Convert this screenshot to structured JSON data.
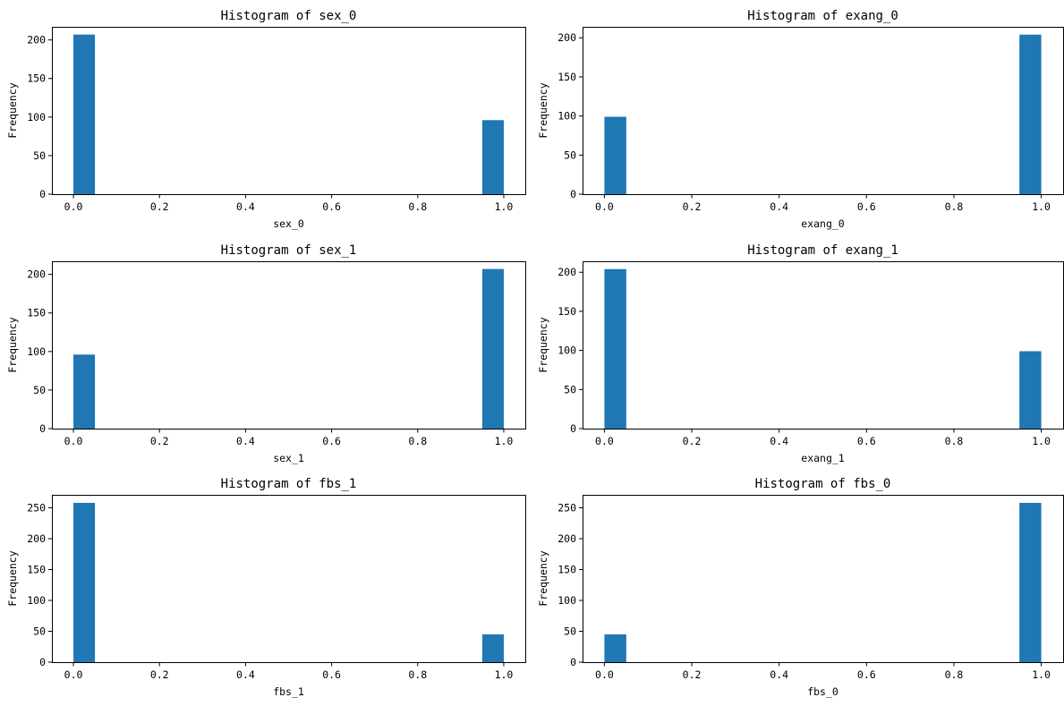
{
  "colors": {
    "bar": "#1f77b4",
    "axis": "#000000"
  },
  "chart_data": [
    {
      "type": "bar",
      "title": "Histogram of sex_0",
      "xlabel": "sex_0",
      "ylabel": "Frequency",
      "xlim": [
        -0.05,
        1.05
      ],
      "ylim": [
        0,
        217
      ],
      "xticks": [
        0.0,
        0.2,
        0.4,
        0.6,
        0.8,
        1.0
      ],
      "xtick_labels": [
        "0.0",
        "0.2",
        "0.4",
        "0.6",
        "0.8",
        "1.0"
      ],
      "yticks": [
        0,
        50,
        100,
        150,
        200
      ],
      "ytick_labels": [
        "0",
        "50",
        "100",
        "150",
        "200"
      ],
      "bins": [
        {
          "start": 0.0,
          "end": 0.05,
          "value": 207
        },
        {
          "start": 0.95,
          "end": 1.0,
          "value": 96
        }
      ]
    },
    {
      "type": "bar",
      "title": "Histogram of exang_0",
      "xlabel": "exang_0",
      "ylabel": "Frequency",
      "xlim": [
        -0.05,
        1.05
      ],
      "ylim": [
        0,
        214
      ],
      "xticks": [
        0.0,
        0.2,
        0.4,
        0.6,
        0.8,
        1.0
      ],
      "xtick_labels": [
        "0.0",
        "0.2",
        "0.4",
        "0.6",
        "0.8",
        "1.0"
      ],
      "yticks": [
        0,
        50,
        100,
        150,
        200
      ],
      "ytick_labels": [
        "0",
        "50",
        "100",
        "150",
        "200"
      ],
      "bins": [
        {
          "start": 0.0,
          "end": 0.05,
          "value": 99
        },
        {
          "start": 0.95,
          "end": 1.0,
          "value": 204
        }
      ]
    },
    {
      "type": "bar",
      "title": "Histogram of sex_1",
      "xlabel": "sex_1",
      "ylabel": "Frequency",
      "xlim": [
        -0.05,
        1.05
      ],
      "ylim": [
        0,
        217
      ],
      "xticks": [
        0.0,
        0.2,
        0.4,
        0.6,
        0.8,
        1.0
      ],
      "xtick_labels": [
        "0.0",
        "0.2",
        "0.4",
        "0.6",
        "0.8",
        "1.0"
      ],
      "yticks": [
        0,
        50,
        100,
        150,
        200
      ],
      "ytick_labels": [
        "0",
        "50",
        "100",
        "150",
        "200"
      ],
      "bins": [
        {
          "start": 0.0,
          "end": 0.05,
          "value": 96
        },
        {
          "start": 0.95,
          "end": 1.0,
          "value": 207
        }
      ]
    },
    {
      "type": "bar",
      "title": "Histogram of exang_1",
      "xlabel": "exang_1",
      "ylabel": "Frequency",
      "xlim": [
        -0.05,
        1.05
      ],
      "ylim": [
        0,
        214
      ],
      "xticks": [
        0.0,
        0.2,
        0.4,
        0.6,
        0.8,
        1.0
      ],
      "xtick_labels": [
        "0.0",
        "0.2",
        "0.4",
        "0.6",
        "0.8",
        "1.0"
      ],
      "yticks": [
        0,
        50,
        100,
        150,
        200
      ],
      "ytick_labels": [
        "0",
        "50",
        "100",
        "150",
        "200"
      ],
      "bins": [
        {
          "start": 0.0,
          "end": 0.05,
          "value": 204
        },
        {
          "start": 0.95,
          "end": 1.0,
          "value": 99
        }
      ]
    },
    {
      "type": "bar",
      "title": "Histogram of fbs_1",
      "xlabel": "fbs_1",
      "ylabel": "Frequency",
      "xlim": [
        -0.05,
        1.05
      ],
      "ylim": [
        0,
        271
      ],
      "xticks": [
        0.0,
        0.2,
        0.4,
        0.6,
        0.8,
        1.0
      ],
      "xtick_labels": [
        "0.0",
        "0.2",
        "0.4",
        "0.6",
        "0.8",
        "1.0"
      ],
      "yticks": [
        0,
        50,
        100,
        150,
        200,
        250
      ],
      "ytick_labels": [
        "0",
        "50",
        "100",
        "150",
        "200",
        "250"
      ],
      "bins": [
        {
          "start": 0.0,
          "end": 0.05,
          "value": 258
        },
        {
          "start": 0.95,
          "end": 1.0,
          "value": 45
        }
      ]
    },
    {
      "type": "bar",
      "title": "Histogram of fbs_0",
      "xlabel": "fbs_0",
      "ylabel": "Frequency",
      "xlim": [
        -0.05,
        1.05
      ],
      "ylim": [
        0,
        271
      ],
      "xticks": [
        0.0,
        0.2,
        0.4,
        0.6,
        0.8,
        1.0
      ],
      "xtick_labels": [
        "0.0",
        "0.2",
        "0.4",
        "0.6",
        "0.8",
        "1.0"
      ],
      "yticks": [
        0,
        50,
        100,
        150,
        200,
        250
      ],
      "ytick_labels": [
        "0",
        "50",
        "100",
        "150",
        "200",
        "250"
      ],
      "bins": [
        {
          "start": 0.0,
          "end": 0.05,
          "value": 45
        },
        {
          "start": 0.95,
          "end": 1.0,
          "value": 258
        }
      ]
    }
  ]
}
